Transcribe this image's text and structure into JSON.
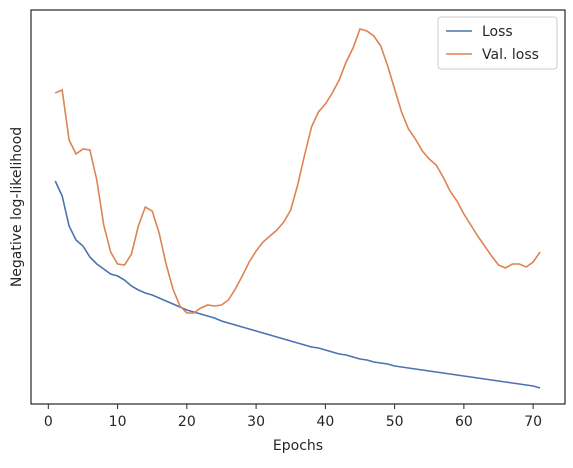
{
  "chart_data": {
    "type": "line",
    "x_label": "Epochs",
    "y_label": "Negative log-likelihood",
    "x": [
      1,
      2,
      3,
      4,
      5,
      6,
      7,
      8,
      9,
      10,
      11,
      12,
      13,
      14,
      15,
      16,
      17,
      18,
      19,
      20,
      21,
      22,
      23,
      24,
      25,
      26,
      27,
      28,
      29,
      30,
      31,
      32,
      33,
      34,
      35,
      36,
      37,
      38,
      39,
      40,
      41,
      42,
      43,
      44,
      45,
      46,
      47,
      48,
      49,
      50,
      51,
      52,
      53,
      54,
      55,
      56,
      57,
      58,
      59,
      60,
      61,
      62,
      63,
      64,
      65,
      66,
      67,
      68,
      69,
      70,
      71
    ],
    "series": [
      {
        "name": "Loss",
        "color": "#4c72b0",
        "values": [
          223,
          208,
          178,
          164,
          158,
          147,
          140,
          135,
          130,
          128,
          124,
          118,
          114,
          111,
          109,
          106,
          103,
          100,
          97,
          94,
          92,
          90,
          88,
          86,
          83,
          81,
          79,
          77,
          75,
          73,
          71,
          69,
          67,
          65,
          63,
          61,
          59,
          57,
          56,
          54,
          52,
          50,
          49,
          47,
          45,
          44,
          42,
          41,
          40,
          38,
          37,
          36,
          35,
          34,
          33,
          32,
          31,
          30,
          29,
          28,
          27,
          26,
          25,
          24,
          23,
          22,
          21,
          20,
          19,
          18,
          16
        ]
      },
      {
        "name": "Val. loss",
        "color": "#dd8452",
        "values": [
          311,
          314,
          264,
          250,
          255,
          254,
          224,
          179,
          152,
          140,
          139,
          150,
          178,
          197,
          193,
          171,
          140,
          115,
          98,
          91,
          91,
          96,
          99,
          98,
          99,
          104,
          115,
          128,
          142,
          153,
          162,
          168,
          174,
          182,
          194,
          219,
          249,
          277,
          292,
          300,
          311,
          324,
          342,
          356,
          375,
          373,
          368,
          358,
          338,
          315,
          292,
          275,
          265,
          253,
          245,
          239,
          227,
          213,
          203,
          190,
          179,
          168,
          158,
          148,
          139,
          136,
          140,
          140,
          137,
          142,
          152
        ]
      }
    ],
    "xlim": [
      -2.5,
      74.6
    ],
    "ylim": [
      0,
      394
    ],
    "xticks": [
      0,
      10,
      20,
      30,
      40,
      50,
      60,
      70
    ],
    "legend": "upper right"
  }
}
